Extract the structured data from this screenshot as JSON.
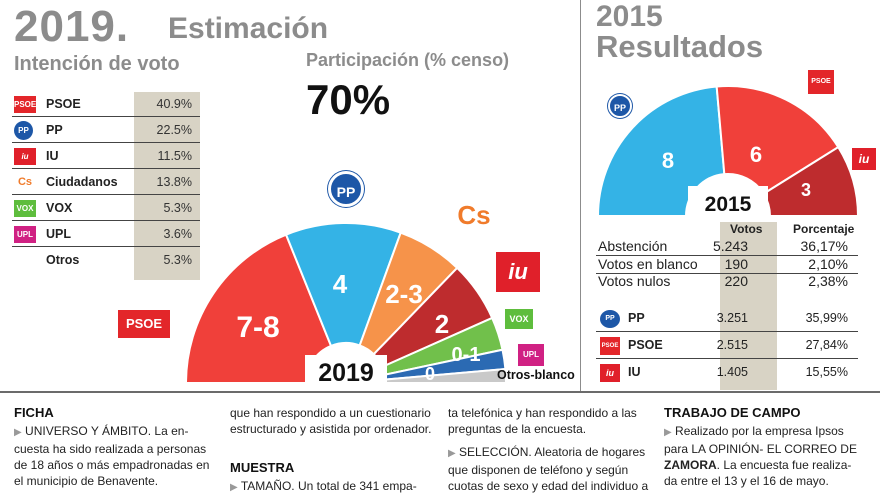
{
  "estimacion": {
    "year": "2019.",
    "title": "Estimación",
    "subtitle": "Intención de voto",
    "participation_label": "Participación (% censo)",
    "participation_value": "70%",
    "parties": [
      {
        "name": "PSOE",
        "value": "40.9%",
        "logo": "PSOE",
        "color": "#e3262a"
      },
      {
        "name": "PP",
        "value": "22.5%",
        "logo": "PP",
        "color": "#1d57a7"
      },
      {
        "name": "IU",
        "value": "11.5%",
        "logo": "iu",
        "color": "#e0202a"
      },
      {
        "name": "Ciudadanos",
        "value": "13.8%",
        "logo": "Cs",
        "color": "#f07b2b"
      },
      {
        "name": "VOX",
        "value": "5.3%",
        "logo": "VOX",
        "color": "#5ebd3d"
      },
      {
        "name": "UPL",
        "value": "3.6%",
        "logo": "UPL",
        "color": "#d02183"
      },
      {
        "name": "Otros",
        "value": "5.3%",
        "logo": "",
        "color": ""
      }
    ],
    "seat_chart": {
      "center_label": "2019",
      "segments": [
        {
          "party": "PSOE",
          "seats": "7-8",
          "color": "#f0403a"
        },
        {
          "party": "PP",
          "seats": "4",
          "color": "#34b3e6"
        },
        {
          "party": "Ciudadanos",
          "seats": "2-3",
          "color": "#f6934a"
        },
        {
          "party": "IU",
          "seats": "2",
          "color": "#be2c2e"
        },
        {
          "party": "VOX",
          "seats": "0-1",
          "color": "#71c04b"
        },
        {
          "party": "UPL",
          "seats": "0",
          "color": "#2b6ab3"
        },
        {
          "party": "Otros-blanco",
          "seats": "",
          "color": "#c9c9c9"
        }
      ],
      "badges": {
        "psoe": "PSOE",
        "pp": "PP",
        "cs": "Cs",
        "iu": "iu",
        "vox": "VOX",
        "upl": "UPL"
      },
      "others_label": "Otros-blanco"
    }
  },
  "resultados": {
    "year": "2015",
    "title": "Resultados",
    "seat_chart": {
      "center_label": "2015",
      "segments": [
        {
          "party": "PP",
          "seats": "8",
          "color": "#34b3e6"
        },
        {
          "party": "PSOE",
          "seats": "6",
          "color": "#f0403a"
        },
        {
          "party": "IU",
          "seats": "3",
          "color": "#be2c2e"
        }
      ],
      "badges": {
        "pp": "PP",
        "psoe": "PSOE",
        "iu": "iu"
      }
    },
    "table": {
      "col_votes": "Votos",
      "col_pct": "Porcentaje",
      "rows": [
        {
          "label": "Abstención",
          "votes": "5.243",
          "pct": "36,17%"
        },
        {
          "label": "Votos en blanco",
          "votes": "190",
          "pct": "2,10%"
        },
        {
          "label": "Votos nulos",
          "votes": "220",
          "pct": "2,38%"
        }
      ],
      "parties": [
        {
          "name": "PP",
          "votes": "3.251",
          "pct": "35,99%",
          "color": "#1d57a7"
        },
        {
          "name": "PSOE",
          "votes": "2.515",
          "pct": "27,84%",
          "color": "#e3262a"
        },
        {
          "name": "IU",
          "votes": "1.405",
          "pct": "15,55%",
          "color": "#e0202a"
        }
      ]
    }
  },
  "footer": {
    "ficha_title": "FICHA",
    "ficha_1_head": "UNIVERSO Y ÁMBITO",
    "ficha_1_text": ". La en-",
    "ficha_2": "cuesta ha sido realizada a personas",
    "ficha_3": "de 18 años o más empadronadas en",
    "ficha_4": "el municipio de Benavente.",
    "col2_1": "que han respondido a un cuestionario",
    "col2_2": "estructurado y asistida por ordenador.",
    "muestra_title": "MUESTRA",
    "tamano_head": "TAMAÑO",
    "tamano_text": ". Un total de 341 empa-",
    "col3_1": "ta telefónica y han respondido a las",
    "col3_2": "preguntas de la encuesta.",
    "seleccion_head": "SELECCIÓN",
    "seleccion_text": ". Aleatoria de hogares",
    "col3_4": "que disponen de teléfono y según",
    "col3_5": "cuotas de sexo y edad del individuo a",
    "campo_title": "TRABAJO DE CAMPO",
    "campo_1": "Realizado por la empresa Ipsos",
    "campo_2": "para LA OPINIÓN- EL CORREO DE",
    "campo_3": "ZAMORA",
    "campo_3b": ". La encuesta fue realiza-",
    "campo_4": "da entre el 13 y el 16 de  mayo."
  }
}
